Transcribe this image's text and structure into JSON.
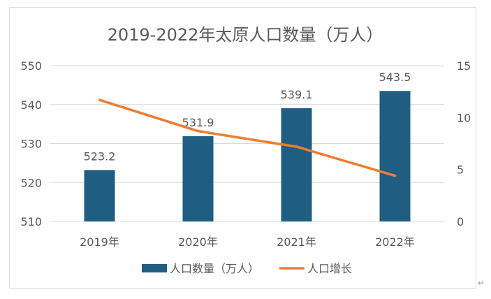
{
  "chart_data": {
    "type": "bar",
    "title": "2019-2022年太原人口数量（万人）",
    "categories": [
      "2019年",
      "2020年",
      "2021年",
      "2022年"
    ],
    "series": [
      {
        "name": "人口数量（万人）",
        "type": "bar",
        "axis": "left",
        "values": [
          523.2,
          531.9,
          539.1,
          543.5
        ],
        "data_labels": [
          "523.2",
          "531.9",
          "539.1",
          "543.5"
        ],
        "color": "#1f5e82"
      },
      {
        "name": "人口增长",
        "type": "line",
        "axis": "right",
        "values": [
          11.7,
          8.7,
          7.2,
          4.4
        ],
        "color": "#ed7d31"
      }
    ],
    "y_left": {
      "ylim": [
        510,
        550
      ],
      "ticks": [
        "510",
        "520",
        "530",
        "540",
        "550"
      ]
    },
    "y_right": {
      "ylim": [
        0,
        15
      ],
      "ticks": [
        "0",
        "5",
        "10",
        "15"
      ]
    },
    "grid": true,
    "legend": "bottom"
  },
  "colors": {
    "bar": "#1f5e82",
    "line": "#ed7d31",
    "grid": "#d9d9d9",
    "text": "#595959"
  },
  "page": {
    "return_mark": "↵"
  }
}
